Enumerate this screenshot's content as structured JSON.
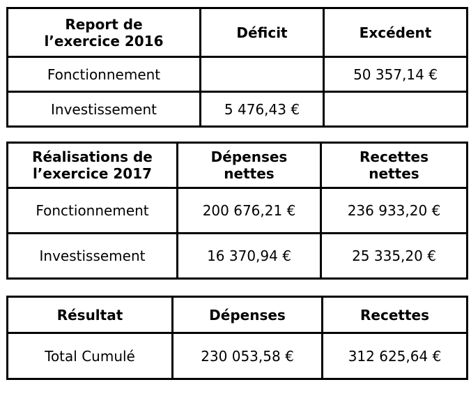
{
  "page": {
    "background_color": "#ffffff",
    "text_color": "#000000",
    "border_color": "#000000"
  },
  "tables": [
    {
      "name": "report-exercice-2016",
      "columns": [
        "Report de\nl’exercice 2016",
        "Déficit",
        "Excédent"
      ],
      "rows": [
        {
          "label": "Fonctionnement",
          "deficit": "",
          "excedent": "50 357,14 €"
        },
        {
          "label": "Investissement",
          "deficit": "5 476,43 €",
          "excedent": ""
        }
      ]
    },
    {
      "name": "realisations-exercice-2017",
      "columns": [
        "Réalisations de\nl’exercice 2017",
        "Dépenses\nnettes",
        "Recettes\nnettes"
      ],
      "rows": [
        {
          "label": "Fonctionnement",
          "depenses": "200 676,21 €",
          "recettes": "236 933,20 €"
        },
        {
          "label": "Investissement",
          "depenses": "16 370,94 €",
          "recettes": "25 335,20 €"
        }
      ]
    },
    {
      "name": "resultat",
      "columns": [
        "Résultat",
        "Dépenses",
        "Recettes"
      ],
      "rows": [
        {
          "label": "Total Cumulé",
          "depenses": "230 053,58 €",
          "recettes": "312 625,64 €"
        }
      ]
    }
  ]
}
